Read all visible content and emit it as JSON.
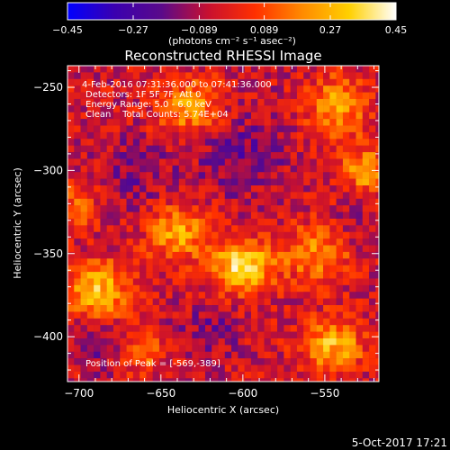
{
  "chart_data": {
    "type": "heatmap",
    "title": "Reconstructed RHESSI Image",
    "xlabel": "Heliocentric X (arcsec)",
    "ylabel": "Heliocentric Y (arcsec)",
    "xlim": [
      -707,
      -517
    ],
    "ylim": [
      -427,
      -237
    ],
    "x_ticks": [
      {
        "value": -700,
        "label": "−700"
      },
      {
        "value": -650,
        "label": "−650"
      },
      {
        "value": -600,
        "label": "−600"
      },
      {
        "value": -550,
        "label": "−550"
      }
    ],
    "y_ticks": [
      {
        "value": -250,
        "label": "−250"
      },
      {
        "value": -300,
        "label": "−300"
      },
      {
        "value": -350,
        "label": "−350"
      },
      {
        "value": -400,
        "label": "−400"
      }
    ],
    "colorbar": {
      "min": -0.45,
      "max": 0.45,
      "tick_labels": [
        {
          "value": -0.45,
          "label": "−0.45"
        },
        {
          "value": -0.27,
          "label": "−0.27"
        },
        {
          "value": -0.089,
          "label": "−0.089"
        },
        {
          "value": 0.089,
          "label": "0.089"
        },
        {
          "value": 0.27,
          "label": "0.27"
        },
        {
          "value": 0.45,
          "label": "0.45"
        }
      ],
      "units_label": "(photons cm⁻² s⁻¹ asec⁻²)",
      "colormap": [
        "#0000ff",
        "#3a00b0",
        "#5a0a8a",
        "#c81030",
        "#ff3000",
        "#ff8a00",
        "#ffd000",
        "#ffffff"
      ]
    },
    "annotations": [
      "4-Feb-2016 07:31:36.000 to 07:41:36.000",
      "Detectors: 1F 5F 7F, Att 0",
      "Energy Range: 5.0 - 6.0 keV",
      "Clean    Total Counts: 5.74E+04"
    ],
    "peak_label": "Position of Peak = [-569,-389]",
    "peak": {
      "x": -569,
      "y": -389
    },
    "grid": false,
    "pixel_size_arcsec": 4,
    "image_blobs": [
      {
        "x": -600,
        "y": -358,
        "amp": 0.44,
        "sx": 13,
        "sy": 11
      },
      {
        "x": -688,
        "y": -372,
        "amp": 0.33,
        "sx": 14,
        "sy": 12
      },
      {
        "x": -640,
        "y": -338,
        "amp": 0.3,
        "sx": 12,
        "sy": 12
      },
      {
        "x": -632,
        "y": -262,
        "amp": 0.27,
        "sx": 14,
        "sy": 12
      },
      {
        "x": -543,
        "y": -262,
        "amp": 0.3,
        "sx": 12,
        "sy": 13
      },
      {
        "x": -525,
        "y": -300,
        "amp": 0.27,
        "sx": 10,
        "sy": 10
      },
      {
        "x": -555,
        "y": -350,
        "amp": 0.25,
        "sx": 14,
        "sy": 12
      },
      {
        "x": -545,
        "y": -405,
        "amp": 0.32,
        "sx": 13,
        "sy": 11
      },
      {
        "x": -662,
        "y": -410,
        "amp": 0.2,
        "sx": 10,
        "sy": 8
      },
      {
        "x": -700,
        "y": -320,
        "amp": 0.18,
        "sx": 8,
        "sy": 10
      },
      {
        "x": -600,
        "y": -290,
        "amp": -0.14,
        "sx": 18,
        "sy": 16
      },
      {
        "x": -665,
        "y": -300,
        "amp": -0.1,
        "sx": 14,
        "sy": 14
      },
      {
        "x": -690,
        "y": -405,
        "amp": -0.12,
        "sx": 10,
        "sy": 10
      },
      {
        "x": -620,
        "y": -395,
        "amp": -0.1,
        "sx": 12,
        "sy": 10
      },
      {
        "x": -530,
        "y": -330,
        "amp": -0.08,
        "sx": 8,
        "sy": 10
      }
    ]
  },
  "footer": {
    "date": "5-Oct-2017 17:21"
  }
}
